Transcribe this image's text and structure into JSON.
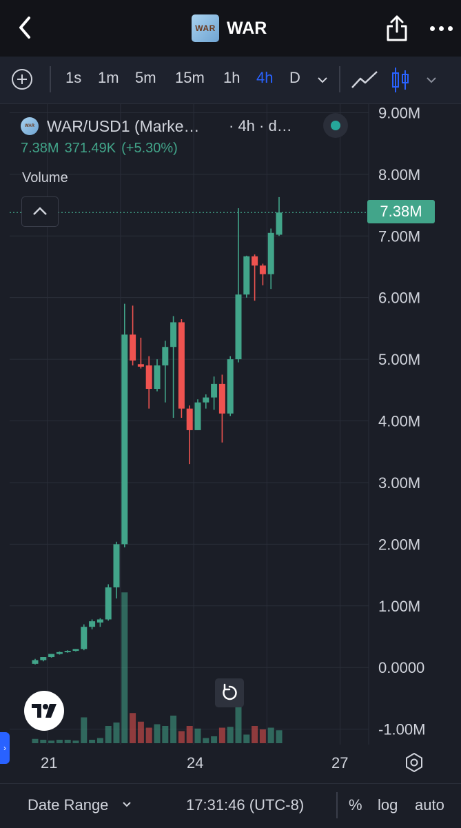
{
  "header": {
    "title": "WAR",
    "logo_text": "WAR"
  },
  "toolbar": {
    "intervals": [
      "1s",
      "1m",
      "5m",
      "15m",
      "1h",
      "4h",
      "D"
    ],
    "active_interval": "4h"
  },
  "legend": {
    "symbol": "WAR/USD1 (Marke…",
    "interval": "· 4h · d…",
    "last": "7.38M",
    "change": "371.49K",
    "change_pct": "(+5.30%)",
    "volume_label": "Volume",
    "status_color": "#26a69a"
  },
  "colors": {
    "up": "#42a58a",
    "down": "#ef5350",
    "background": "#1b1e27",
    "accent": "#2962ff"
  },
  "chart_data": {
    "type": "candlestick",
    "y_ticks": [
      "9.00M",
      "8.00M",
      "7.00M",
      "6.00M",
      "5.00M",
      "4.00M",
      "3.00M",
      "2.00M",
      "1.00M",
      "0.0000",
      "-1.00M"
    ],
    "ylim": [
      -1.25,
      9.15
    ],
    "y_unit": "M",
    "x_ticks": [
      {
        "label": "21",
        "index": 1.5
      },
      {
        "label": "24",
        "index": 19.5
      },
      {
        "label": "27",
        "index": 37.5
      }
    ],
    "current_price": 7.38,
    "current_price_label": "7.38M",
    "candles": [
      {
        "o": 0.06,
        "h": 0.14,
        "l": 0.05,
        "c": 0.12
      },
      {
        "o": 0.12,
        "h": 0.17,
        "l": 0.1,
        "c": 0.17
      },
      {
        "o": 0.17,
        "h": 0.22,
        "l": 0.16,
        "c": 0.22
      },
      {
        "o": 0.22,
        "h": 0.26,
        "l": 0.21,
        "c": 0.25
      },
      {
        "o": 0.25,
        "h": 0.28,
        "l": 0.24,
        "c": 0.27
      },
      {
        "o": 0.27,
        "h": 0.3,
        "l": 0.26,
        "c": 0.3
      },
      {
        "o": 0.3,
        "h": 0.7,
        "l": 0.28,
        "c": 0.66
      },
      {
        "o": 0.66,
        "h": 0.78,
        "l": 0.62,
        "c": 0.75
      },
      {
        "o": 0.73,
        "h": 0.8,
        "l": 0.66,
        "c": 0.78
      },
      {
        "o": 0.78,
        "h": 1.35,
        "l": 0.76,
        "c": 1.3
      },
      {
        "o": 1.3,
        "h": 2.04,
        "l": 1.12,
        "c": 2.0
      },
      {
        "o": 2.0,
        "h": 5.9,
        "l": 1.95,
        "c": 5.4
      },
      {
        "o": 5.4,
        "h": 5.87,
        "l": 4.9,
        "c": 4.98
      },
      {
        "o": 4.92,
        "h": 5.35,
        "l": 4.85,
        "c": 4.88
      },
      {
        "o": 4.9,
        "h": 5.05,
        "l": 4.2,
        "c": 4.52
      },
      {
        "o": 4.52,
        "h": 5.0,
        "l": 4.48,
        "c": 4.9
      },
      {
        "o": 4.9,
        "h": 5.3,
        "l": 4.3,
        "c": 5.2
      },
      {
        "o": 5.2,
        "h": 5.7,
        "l": 4.05,
        "c": 5.6
      },
      {
        "o": 5.6,
        "h": 5.65,
        "l": 4.05,
        "c": 4.2
      },
      {
        "o": 4.2,
        "h": 4.25,
        "l": 3.3,
        "c": 3.85
      },
      {
        "o": 3.85,
        "h": 4.35,
        "l": 3.85,
        "c": 4.3
      },
      {
        "o": 4.3,
        "h": 4.43,
        "l": 4.2,
        "c": 4.38
      },
      {
        "o": 4.38,
        "h": 4.72,
        "l": 4.18,
        "c": 4.6
      },
      {
        "o": 4.6,
        "h": 4.75,
        "l": 3.65,
        "c": 4.12
      },
      {
        "o": 4.12,
        "h": 5.05,
        "l": 4.08,
        "c": 5.0
      },
      {
        "o": 5.0,
        "h": 7.45,
        "l": 4.95,
        "c": 6.05
      },
      {
        "o": 6.05,
        "h": 6.68,
        "l": 6.0,
        "c": 6.67
      },
      {
        "o": 6.67,
        "h": 6.7,
        "l": 5.95,
        "c": 6.52
      },
      {
        "o": 6.52,
        "h": 6.55,
        "l": 6.2,
        "c": 6.38
      },
      {
        "o": 6.38,
        "h": 7.12,
        "l": 6.14,
        "c": 7.05
      },
      {
        "o": 7.02,
        "h": 7.63,
        "l": 7.0,
        "c": 7.38
      }
    ],
    "volume": [
      0.05,
      0.04,
      0.03,
      0.04,
      0.04,
      0.03,
      0.3,
      0.04,
      0.06,
      0.2,
      0.24,
      1.75,
      0.35,
      0.25,
      0.18,
      0.22,
      0.2,
      0.32,
      0.14,
      0.2,
      0.17,
      0.06,
      0.08,
      0.18,
      0.19,
      0.55,
      0.1,
      0.2,
      0.16,
      0.18,
      0.15
    ]
  },
  "bottom_bar": {
    "date_range": "Date Range",
    "time": "17:31:46 (UTC-8)",
    "percent": "%",
    "log": "log",
    "auto": "auto"
  }
}
